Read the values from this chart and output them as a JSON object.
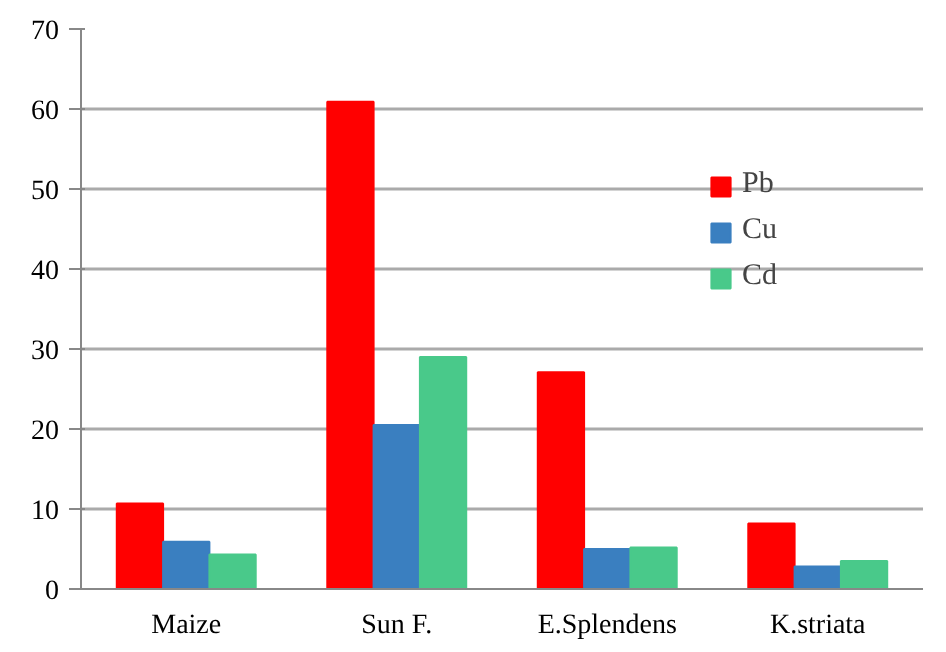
{
  "chart_data": {
    "type": "bar",
    "categories": [
      "Maize",
      "Sun F.",
      "E.Splendens",
      "K.striata"
    ],
    "series": [
      {
        "name": "Pb",
        "color": "#ff0000",
        "values": [
          10.7,
          60.9,
          27.1,
          8.2
        ]
      },
      {
        "name": "Cu",
        "color": "#3a7fc0",
        "values": [
          5.9,
          20.5,
          5.0,
          2.8
        ]
      },
      {
        "name": "Cd",
        "color": "#49c98a",
        "values": [
          4.3,
          29.0,
          5.2,
          3.5
        ]
      }
    ],
    "ylim": [
      0,
      70
    ],
    "yticks": [
      0,
      10,
      20,
      30,
      40,
      50,
      60,
      70
    ],
    "grid": "y",
    "legend": "top right"
  }
}
